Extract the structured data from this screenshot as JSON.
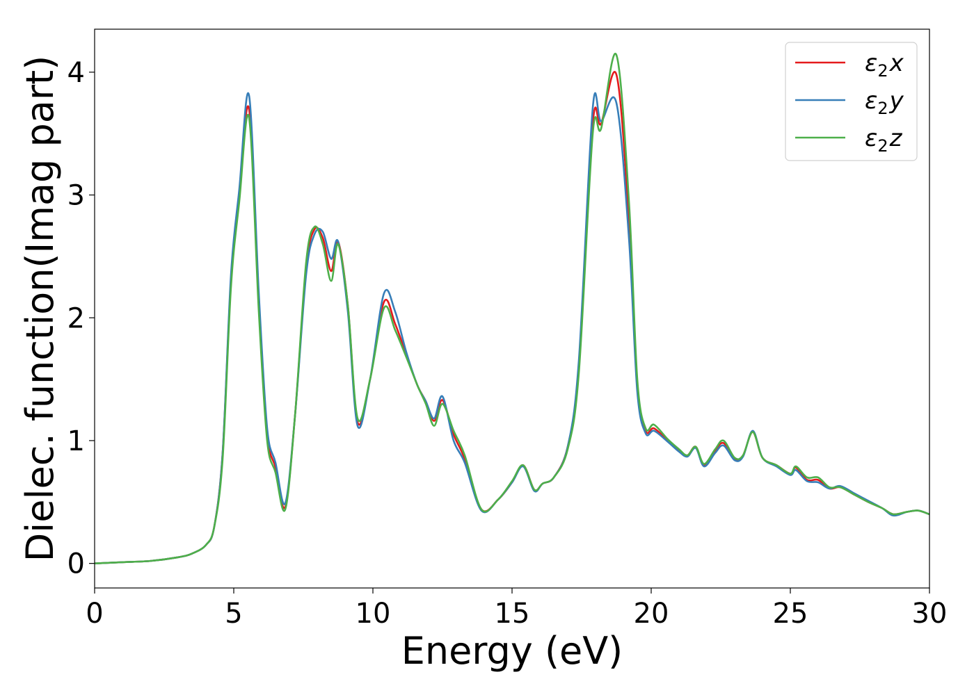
{
  "chart_data": {
    "type": "line",
    "title": "",
    "xlabel": "Energy (eV)",
    "ylabel": "Dielec. function(Imag part)",
    "xlim": [
      0,
      30
    ],
    "ylim": [
      -0.2,
      4.35
    ],
    "xticks": [
      0,
      5,
      10,
      15,
      20,
      25,
      30
    ],
    "yticks": [
      0,
      1,
      2,
      3,
      4
    ],
    "xtick_labels": [
      "0",
      "5",
      "10",
      "15",
      "20",
      "25",
      "30"
    ],
    "ytick_labels": [
      "0",
      "1",
      "2",
      "3",
      "4"
    ],
    "grid": false,
    "legend_position": "top-right",
    "x": [
      0,
      1,
      2,
      3,
      3.5,
      4,
      4.3,
      4.6,
      4.9,
      5.2,
      5.55,
      5.9,
      6.2,
      6.5,
      6.85,
      7.2,
      7.6,
      7.9,
      8.2,
      8.5,
      8.75,
      9.1,
      9.45,
      9.9,
      10.4,
      10.8,
      11.2,
      11.6,
      11.9,
      12.2,
      12.5,
      12.9,
      13.3,
      13.9,
      14.5,
      15.0,
      15.4,
      15.8,
      16.1,
      16.5,
      17.0,
      17.4,
      17.9,
      18.2,
      18.75,
      19.2,
      19.5,
      19.8,
      20.1,
      20.6,
      21.0,
      21.3,
      21.6,
      21.9,
      22.3,
      22.6,
      23.0,
      23.3,
      23.65,
      24.0,
      24.5,
      25.0,
      25.2,
      25.6,
      26.0,
      26.4,
      26.8,
      27.3,
      27.8,
      28.3,
      28.7,
      29.2,
      29.6,
      30.0
    ],
    "series": [
      {
        "name": "ε₂x",
        "label_main": "ε",
        "label_sub": "2",
        "label_var": "x",
        "color": "#e41a1c",
        "values": [
          0,
          0.01,
          0.02,
          0.05,
          0.08,
          0.15,
          0.3,
          0.9,
          2.3,
          3.0,
          3.7,
          2.1,
          1.05,
          0.78,
          0.46,
          1.2,
          2.4,
          2.72,
          2.65,
          2.38,
          2.62,
          2.1,
          1.15,
          1.5,
          2.13,
          1.95,
          1.7,
          1.45,
          1.32,
          1.16,
          1.33,
          1.05,
          0.85,
          0.44,
          0.52,
          0.66,
          0.8,
          0.6,
          0.65,
          0.7,
          0.95,
          1.6,
          3.58,
          3.58,
          3.98,
          2.8,
          1.45,
          1.08,
          1.1,
          1.0,
          0.92,
          0.88,
          0.95,
          0.8,
          0.92,
          0.98,
          0.85,
          0.88,
          1.07,
          0.86,
          0.8,
          0.73,
          0.78,
          0.68,
          0.68,
          0.61,
          0.62,
          0.56,
          0.5,
          0.45,
          0.4,
          0.42,
          0.43,
          0.4
        ]
      },
      {
        "name": "ε₂y",
        "label_main": "ε",
        "label_sub": "2",
        "label_var": "y",
        "color": "#377eb8",
        "values": [
          0,
          0.01,
          0.02,
          0.05,
          0.08,
          0.15,
          0.3,
          0.9,
          2.35,
          3.05,
          3.81,
          2.2,
          1.1,
          0.82,
          0.49,
          1.2,
          2.35,
          2.68,
          2.7,
          2.48,
          2.62,
          2.05,
          1.12,
          1.5,
          2.2,
          2.05,
          1.72,
          1.45,
          1.32,
          1.18,
          1.36,
          1.0,
          0.82,
          0.43,
          0.52,
          0.66,
          0.79,
          0.59,
          0.65,
          0.7,
          0.95,
          1.65,
          3.71,
          3.6,
          3.75,
          2.65,
          1.4,
          1.06,
          1.08,
          0.99,
          0.91,
          0.87,
          0.94,
          0.79,
          0.9,
          0.96,
          0.84,
          0.87,
          1.08,
          0.86,
          0.79,
          0.72,
          0.76,
          0.67,
          0.66,
          0.61,
          0.63,
          0.57,
          0.51,
          0.45,
          0.39,
          0.42,
          0.43,
          0.4
        ]
      },
      {
        "name": "ε₂z",
        "label_main": "ε",
        "label_sub": "2",
        "label_var": "z",
        "color": "#4daf4a",
        "values": [
          0,
          0.01,
          0.02,
          0.05,
          0.08,
          0.15,
          0.3,
          0.85,
          2.25,
          2.95,
          3.63,
          2.05,
          1.0,
          0.74,
          0.44,
          1.2,
          2.45,
          2.74,
          2.6,
          2.3,
          2.6,
          2.1,
          1.18,
          1.5,
          2.08,
          1.9,
          1.68,
          1.45,
          1.3,
          1.12,
          1.3,
          1.08,
          0.88,
          0.44,
          0.52,
          0.67,
          0.8,
          0.6,
          0.65,
          0.7,
          0.93,
          1.55,
          3.5,
          3.54,
          4.14,
          2.95,
          1.5,
          1.1,
          1.13,
          1.01,
          0.93,
          0.88,
          0.95,
          0.81,
          0.93,
          1.0,
          0.86,
          0.88,
          1.07,
          0.86,
          0.8,
          0.73,
          0.79,
          0.7,
          0.7,
          0.62,
          0.62,
          0.56,
          0.5,
          0.45,
          0.4,
          0.42,
          0.43,
          0.4
        ]
      }
    ]
  }
}
